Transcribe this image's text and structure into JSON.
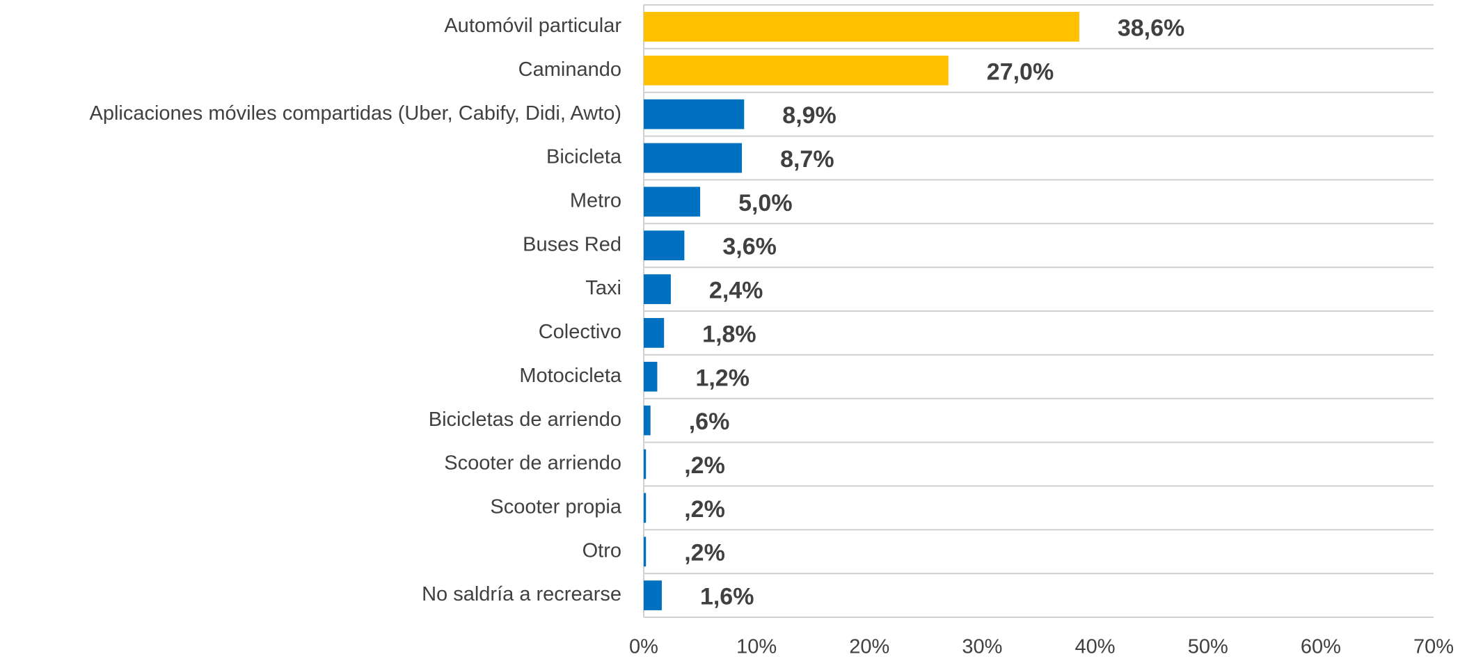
{
  "chart_data": {
    "type": "bar",
    "orientation": "horizontal",
    "categories": [
      "Automóvil particular",
      "Caminando",
      "Aplicaciones móviles compartidas (Uber, Cabify, Didi, Awto)",
      "Bicicleta",
      "Metro",
      "Buses Red",
      "Taxi",
      "Colectivo",
      "Motocicleta",
      "Bicicletas de arriendo",
      "Scooter de arriendo",
      "Scooter propia",
      "Otro",
      "No saldría a recrearse"
    ],
    "values": [
      38.6,
      27.0,
      8.9,
      8.7,
      5.0,
      3.6,
      2.4,
      1.8,
      1.2,
      0.6,
      0.2,
      0.2,
      0.2,
      1.6
    ],
    "value_labels": [
      "38,6%",
      "27,0%",
      "8,9%",
      "8,7%",
      "5,0%",
      "3,6%",
      "2,4%",
      "1,8%",
      "1,2%",
      ",6%",
      ",2%",
      ",2%",
      ",2%",
      "1,6%"
    ],
    "colors": [
      "#FFC000",
      "#FFC000",
      "#0070C0",
      "#0070C0",
      "#0070C0",
      "#0070C0",
      "#0070C0",
      "#0070C0",
      "#0070C0",
      "#0070C0",
      "#0070C0",
      "#0070C0",
      "#0070C0",
      "#0070C0"
    ],
    "xlim": [
      0,
      70
    ],
    "xticks": [
      {
        "value": 0,
        "label": "0%"
      },
      {
        "value": 10,
        "label": "10%"
      },
      {
        "value": 20,
        "label": "20%"
      },
      {
        "value": 30,
        "label": "30%"
      },
      {
        "value": 40,
        "label": "40%"
      },
      {
        "value": 50,
        "label": "50%"
      },
      {
        "value": 60,
        "label": "60%"
      },
      {
        "value": 70,
        "label": "70%"
      }
    ]
  }
}
